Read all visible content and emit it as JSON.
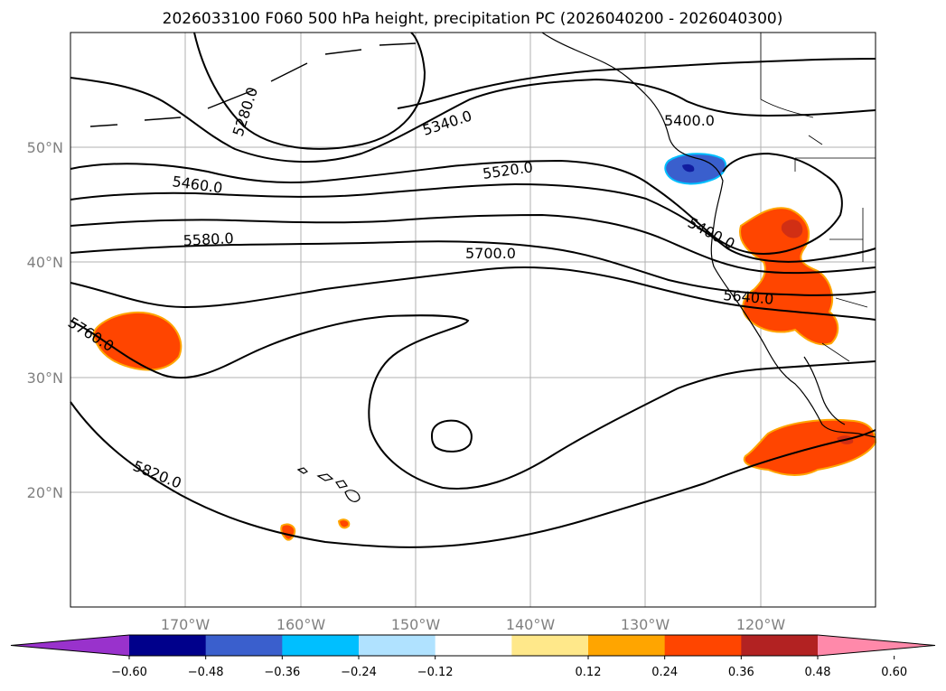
{
  "title": "2026033100 F060 500 hPa height, precipitation PC (2026040200 - 2026040300)",
  "lat_labels": [
    "50°N",
    "40°N",
    "30°N",
    "20°N"
  ],
  "lon_labels": [
    "170°W",
    "160°W",
    "150°W",
    "140°W",
    "130°W",
    "120°W"
  ],
  "contour_labels": [
    "5280.0",
    "5340.0",
    "5400.0",
    "5460.0",
    "5520.0",
    "5400.0",
    "5580.0",
    "5700.0",
    "5640.0",
    "5760.0",
    "5820.0"
  ],
  "colorbar": {
    "ticks": [
      "−0.60",
      "−0.48",
      "−0.36",
      "−0.24",
      "−0.12",
      "0.12",
      "0.24",
      "0.36",
      "0.48",
      "0.60"
    ],
    "colors": [
      "#9932cc",
      "#00008b",
      "#3a5fcd",
      "#00bfff",
      "#b0e2ff",
      "#ffffff",
      "#ffe88a",
      "#ffa500",
      "#ff4500",
      "#b22222",
      "#ff89aa"
    ]
  },
  "colors": {
    "positive_precip": "#ff4500",
    "positive_edge": "#ffa500",
    "positive_strong": "#b22222",
    "negative_precip": "#3a5fcd",
    "negative_edge": "#00bfff",
    "negative_strong": "#00008b"
  }
}
